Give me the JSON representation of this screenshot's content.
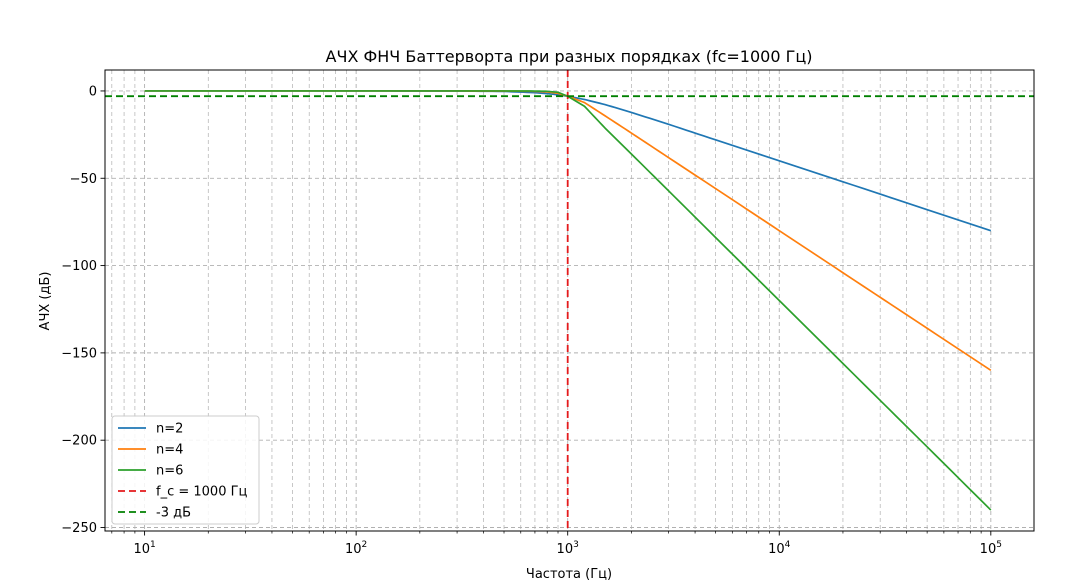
{
  "chart_data": {
    "type": "line",
    "title": "АЧХ ФНЧ Баттерворта при разных порядках (fc=1000 Гц)",
    "xlabel": "Частота (Гц)",
    "ylabel": "АЧХ (дБ)",
    "x_scale": "log",
    "xlim": [
      6.5,
      160000
    ],
    "ylim": [
      -252,
      12
    ],
    "x_ticks": [
      {
        "value": 10,
        "base": "10",
        "exp": "1"
      },
      {
        "value": 100,
        "base": "10",
        "exp": "2"
      },
      {
        "value": 1000,
        "base": "10",
        "exp": "3"
      },
      {
        "value": 10000,
        "base": "10",
        "exp": "4"
      },
      {
        "value": 100000,
        "base": "10",
        "exp": "5"
      }
    ],
    "y_ticks": [
      {
        "value": 0,
        "label": "0"
      },
      {
        "value": -50,
        "label": "−50"
      },
      {
        "value": -100,
        "label": "−100"
      },
      {
        "value": -150,
        "label": "−150"
      },
      {
        "value": -200,
        "label": "−200"
      },
      {
        "value": -250,
        "label": "−250"
      }
    ],
    "grid": true,
    "legend_position": "lower-left",
    "cutoff_frequency": 1000,
    "x_range": [
      10,
      100000
    ],
    "x": [
      10,
      20,
      50,
      100,
      200,
      300,
      500,
      700,
      800,
      900,
      1000,
      1200,
      1500,
      2000,
      3000,
      5000,
      10000,
      20000,
      50000,
      100000
    ],
    "series": [
      {
        "name": "n=2",
        "color": "#1f77b4",
        "dash": "solid",
        "values": [
          0.0,
          0.0,
          0.0,
          0.0,
          -0.01,
          -0.04,
          -0.26,
          -0.97,
          -1.52,
          -2.19,
          -3.01,
          -4.88,
          -7.77,
          -12.3,
          -19.1,
          -28.0,
          -40.0,
          -52.0,
          -68.0,
          -80.0
        ]
      },
      {
        "name": "n=4",
        "color": "#ff7f0e",
        "dash": "solid",
        "values": [
          0.0,
          0.0,
          0.0,
          0.0,
          0.0,
          0.0,
          -0.03,
          -0.23,
          -0.56,
          -1.34,
          -3.01,
          -6.63,
          -14.2,
          -24.1,
          -38.2,
          -55.9,
          -80.0,
          -104.1,
          -135.9,
          -160.0
        ]
      },
      {
        "name": "n=6",
        "color": "#2ca02c",
        "dash": "solid",
        "values": [
          0.0,
          0.0,
          0.0,
          0.0,
          0.0,
          0.0,
          0.0,
          -0.05,
          -0.2,
          -0.76,
          -3.01,
          -8.76,
          -21.2,
          -36.1,
          -57.2,
          -83.9,
          -120.0,
          -156.1,
          -203.8,
          -240.0
        ]
      },
      {
        "name": "f_c = 1000 Гц",
        "color": "#e41a1c",
        "dash": "dashed",
        "kind": "vline",
        "x_value": 1000
      },
      {
        "name": "-3 дБ",
        "color": "#008000",
        "dash": "dashed",
        "kind": "hline",
        "y_value": -3
      }
    ]
  }
}
